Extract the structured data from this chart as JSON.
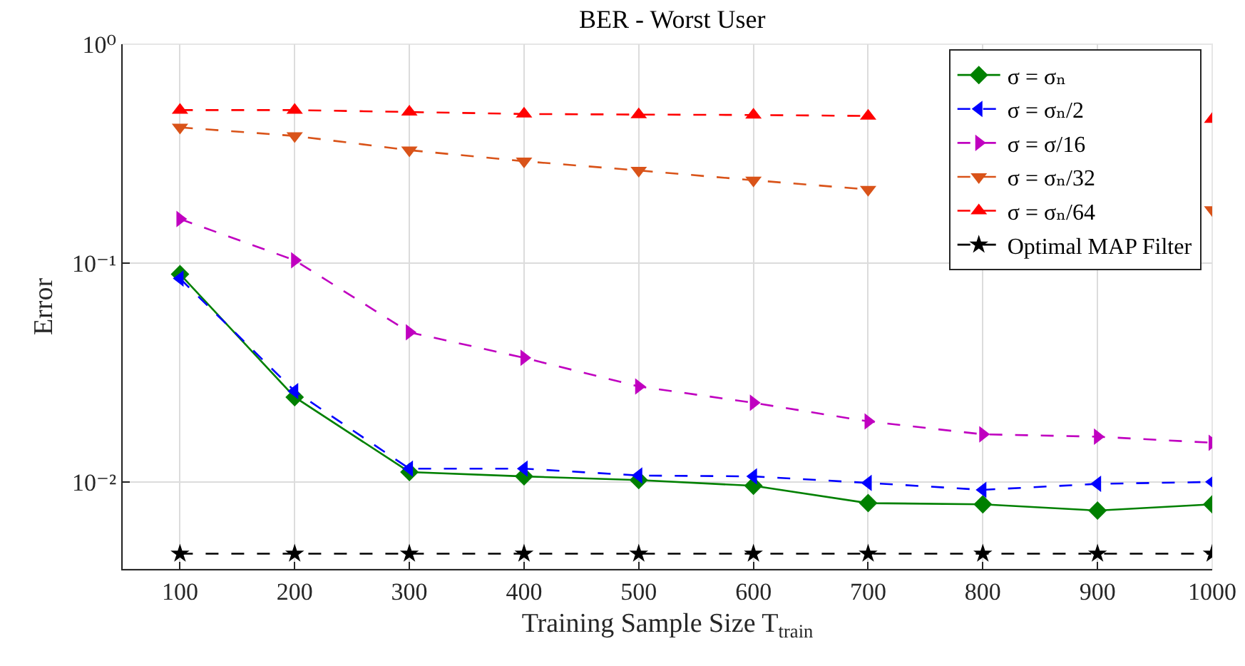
{
  "chart_data": {
    "type": "line",
    "title": "BER - Worst User",
    "xlabel": "Training Sample Size T$_{train}$",
    "ylabel": "Error",
    "x": [
      100,
      200,
      300,
      400,
      500,
      600,
      700,
      800,
      900,
      1000
    ],
    "series": [
      {
        "name": "σ = σₙ",
        "color": "#008000",
        "marker": "diamond",
        "line_style": "solid",
        "values": [
          0.089,
          0.0244,
          0.0111,
          0.0106,
          0.0102,
          0.0096,
          0.008,
          0.0079,
          0.0074,
          0.0079
        ]
      },
      {
        "name": "σ = σₙ/2",
        "color": "#0000ff",
        "marker": "triangle-left",
        "line_style": "dashed",
        "values": [
          0.085,
          0.026,
          0.0115,
          0.0115,
          0.0107,
          0.0106,
          0.0099,
          0.0092,
          0.0098,
          0.01
        ]
      },
      {
        "name": "σ = σ/16",
        "color": "#c000c0",
        "marker": "triangle-right",
        "line_style": "dashed",
        "values": [
          0.159,
          0.103,
          0.0483,
          0.0369,
          0.0273,
          0.023,
          0.0189,
          0.0165,
          0.0161,
          0.0151
        ]
      },
      {
        "name": "σ = σₙ/32",
        "color": "#d95319",
        "marker": "triangle-down",
        "line_style": "dashed",
        "values": [
          0.417,
          0.381,
          0.328,
          0.292,
          0.265,
          0.239,
          0.217,
          null,
          null,
          0.175
        ]
      },
      {
        "name": "σ = σₙ/64",
        "color": "#ff0000",
        "marker": "triangle-up",
        "line_style": "dashed",
        "values": [
          0.5,
          0.5,
          0.49,
          0.48,
          0.477,
          0.475,
          0.47,
          null,
          null,
          0.454
        ]
      },
      {
        "name": "Optimal MAP Filter",
        "color": "#000000",
        "marker": "star",
        "line_style": "dashed",
        "values": [
          0.0047,
          0.0047,
          0.0047,
          0.0047,
          0.0047,
          0.0047,
          0.0047,
          0.0047,
          0.0047,
          0.0047
        ]
      }
    ],
    "xlim": [
      50,
      1000
    ],
    "xticks": [
      100,
      200,
      300,
      400,
      500,
      600,
      700,
      800,
      900,
      1000
    ],
    "ylim": [
      0.004,
      1
    ],
    "yticks": [
      {
        "value": 1,
        "label": "10⁰"
      },
      {
        "value": 0.1,
        "label": "10⁻¹"
      },
      {
        "value": 0.01,
        "label": "10⁻²"
      }
    ],
    "log": "y",
    "grid": true,
    "legend": "top right"
  }
}
